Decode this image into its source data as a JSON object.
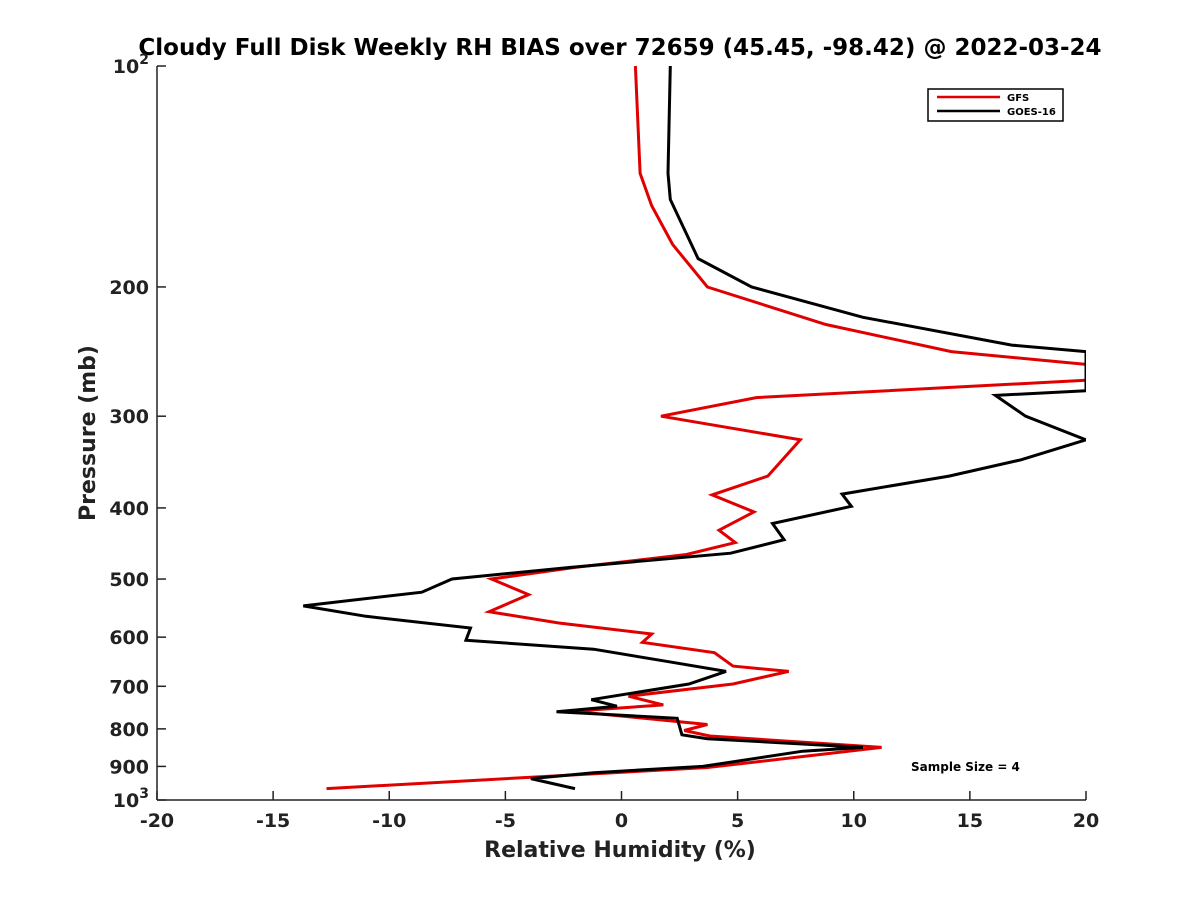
{
  "chart_data": {
    "type": "line",
    "title": "Cloudy Full Disk Weekly RH BIAS over 72659 (45.45, -98.42) @ 2022-03-24",
    "xlabel": "Relative Humidity (%)",
    "ylabel": "Pressure (mb)",
    "xlim": [
      -20,
      20
    ],
    "ylim": [
      100,
      1000
    ],
    "y_scale": "log",
    "y_reversed": true,
    "grid": false,
    "legend_position": "top-right",
    "x_ticks": [
      -20,
      -15,
      -10,
      -5,
      0,
      5,
      10,
      15,
      20
    ],
    "x_tick_labels": [
      "-20",
      "-15",
      "-10",
      "-5",
      "0",
      "5",
      "10",
      "15",
      "20"
    ],
    "y_ticks": [
      100,
      200,
      300,
      400,
      500,
      600,
      700,
      800,
      900,
      1000
    ],
    "y_tick_labels": [
      {
        "base": "10",
        "exp": "2"
      },
      {
        "base": "200",
        "exp": ""
      },
      {
        "base": "300",
        "exp": ""
      },
      {
        "base": "400",
        "exp": ""
      },
      {
        "base": "500",
        "exp": ""
      },
      {
        "base": "600",
        "exp": ""
      },
      {
        "base": "700",
        "exp": ""
      },
      {
        "base": "800",
        "exp": ""
      },
      {
        "base": "900",
        "exp": ""
      },
      {
        "base": "10",
        "exp": "3"
      }
    ],
    "annotation": "Sample Size = 4",
    "series": [
      {
        "name": "GFS",
        "color": "#e00000",
        "points": [
          [
            0.6,
            100
          ],
          [
            0.8,
            140
          ],
          [
            1.3,
            155
          ],
          [
            2.2,
            175
          ],
          [
            3.7,
            200
          ],
          [
            8.8,
            225
          ],
          [
            14.2,
            245
          ],
          [
            20.0,
            255
          ],
          [
            20.0,
            268
          ],
          [
            5.8,
            283
          ],
          [
            1.7,
            300
          ],
          [
            7.7,
            323
          ],
          [
            6.3,
            362
          ],
          [
            3.9,
            384
          ],
          [
            5.7,
            405
          ],
          [
            4.2,
            429
          ],
          [
            4.9,
            446
          ],
          [
            2.8,
            463
          ],
          [
            -2.0,
            482
          ],
          [
            -5.6,
            500
          ],
          [
            -4.0,
            525
          ],
          [
            -5.7,
            554
          ],
          [
            -2.7,
            574
          ],
          [
            1.3,
            594
          ],
          [
            0.9,
            610
          ],
          [
            4.0,
            630
          ],
          [
            4.8,
            657
          ],
          [
            7.2,
            668
          ],
          [
            4.8,
            695
          ],
          [
            0.3,
            722
          ],
          [
            1.8,
            742
          ],
          [
            -2.1,
            757
          ],
          [
            3.7,
            789
          ],
          [
            2.7,
            804
          ],
          [
            3.8,
            818
          ],
          [
            11.2,
            848
          ],
          [
            3.7,
            903
          ],
          [
            -12.7,
            965
          ]
        ]
      },
      {
        "name": "GOES-16",
        "color": "#000000",
        "points": [
          [
            2.1,
            100
          ],
          [
            2.0,
            140
          ],
          [
            2.1,
            152
          ],
          [
            3.3,
            183
          ],
          [
            5.6,
            200
          ],
          [
            10.4,
            220
          ],
          [
            16.8,
            240
          ],
          [
            20.0,
            245
          ],
          [
            20.0,
            277
          ],
          [
            16.1,
            281
          ],
          [
            17.4,
            300
          ],
          [
            20.0,
            323
          ],
          [
            17.2,
            344
          ],
          [
            14.1,
            362
          ],
          [
            9.5,
            383
          ],
          [
            9.9,
            398
          ],
          [
            6.5,
            420
          ],
          [
            7.0,
            442
          ],
          [
            4.7,
            461
          ],
          [
            -2.2,
            482
          ],
          [
            -7.3,
            500
          ],
          [
            -8.6,
            521
          ],
          [
            -13.7,
            544
          ],
          [
            -11.0,
            562
          ],
          [
            -6.5,
            583
          ],
          [
            -6.7,
            606
          ],
          [
            -1.2,
            623
          ],
          [
            1.9,
            647
          ],
          [
            4.5,
            668
          ],
          [
            2.9,
            695
          ],
          [
            -1.3,
            730
          ],
          [
            -0.2,
            745
          ],
          [
            -2.8,
            758
          ],
          [
            2.4,
            774
          ],
          [
            2.6,
            815
          ],
          [
            3.7,
            825
          ],
          [
            10.4,
            848
          ],
          [
            7.8,
            858
          ],
          [
            3.5,
            900
          ],
          [
            -1.2,
            918
          ],
          [
            -3.9,
            935
          ],
          [
            -2.0,
            965
          ]
        ]
      }
    ]
  }
}
